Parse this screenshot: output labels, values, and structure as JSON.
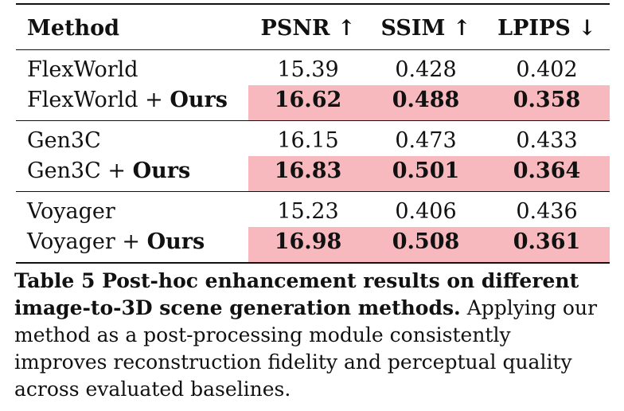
{
  "table": {
    "headers": {
      "method": "Method",
      "psnr": "PSNR ↑",
      "ssim": "SSIM ↑",
      "lpips": "LPIPS ↓"
    },
    "groups": [
      {
        "base": {
          "method": "FlexWorld",
          "psnr": "15.39",
          "ssim": "0.428",
          "lpips": "0.402"
        },
        "ours": {
          "method_prefix": "FlexWorld + ",
          "method_suffix": "Ours",
          "psnr": "16.62",
          "ssim": "0.488",
          "lpips": "0.358"
        }
      },
      {
        "base": {
          "method": "Gen3C",
          "psnr": "16.15",
          "ssim": "0.473",
          "lpips": "0.433"
        },
        "ours": {
          "method_prefix": "Gen3C + ",
          "method_suffix": "Ours",
          "psnr": "16.83",
          "ssim": "0.501",
          "lpips": "0.364"
        }
      },
      {
        "base": {
          "method": "Voyager",
          "psnr": "15.23",
          "ssim": "0.406",
          "lpips": "0.436"
        },
        "ours": {
          "method_prefix": "Voyager + ",
          "method_suffix": "Ours",
          "psnr": "16.98",
          "ssim": "0.508",
          "lpips": "0.361"
        }
      }
    ],
    "highlight_color": "#f7b9bd"
  },
  "caption": {
    "title": "Table 5  Post-hoc enhancement results on different image-to-3D scene generation methods.",
    "body": "Applying our method as a post-processing module consistently improves reconstruction fidelity and perceptual quality across evaluated baselines."
  }
}
